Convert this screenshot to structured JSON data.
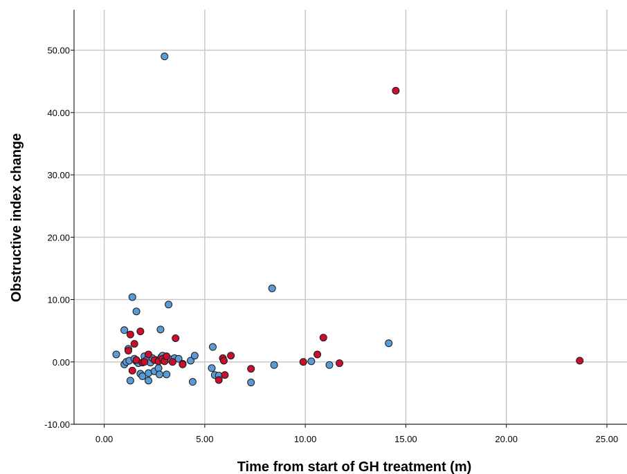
{
  "chart_data": {
    "type": "scatter",
    "title": "",
    "xlabel": "Time from start of GH treatment (m)",
    "ylabel": "Obstructive index change",
    "xlim": [
      -1.5,
      26.0
    ],
    "ylim": [
      -10.0,
      56.5
    ],
    "x_ticks": [
      0,
      5,
      10,
      15,
      20,
      25
    ],
    "x_tick_labels": [
      "0.00",
      "5.00",
      "10.00",
      "15.00",
      "20.00",
      "25.00"
    ],
    "y_ticks": [
      -10,
      0,
      10,
      20,
      30,
      40,
      50
    ],
    "y_tick_labels": [
      "-10.00",
      "0.00",
      "10.00",
      "20.00",
      "30.00",
      "40.00",
      "50.00"
    ],
    "grid": true,
    "series": [
      {
        "color": "#5b9bd5",
        "x": [
          0.6,
          1.0,
          1.0,
          1.1,
          1.2,
          1.25,
          1.3,
          1.4,
          1.5,
          1.6,
          1.6,
          1.7,
          1.8,
          1.9,
          2.0,
          2.1,
          2.2,
          2.2,
          2.3,
          2.4,
          2.5,
          2.6,
          2.7,
          2.75,
          2.8,
          2.85,
          2.9,
          3.0,
          3.05,
          3.1,
          3.2,
          3.3,
          3.5,
          3.7,
          3.9,
          4.3,
          4.4,
          4.5,
          5.35,
          5.4,
          5.5,
          5.7,
          7.3,
          8.35,
          8.45,
          10.3,
          11.2,
          14.15
        ],
        "y": [
          1.2,
          5.1,
          -0.4,
          0.0,
          2.1,
          0.2,
          -3.0,
          10.4,
          0.5,
          8.1,
          0.1,
          -0.2,
          -1.9,
          -2.3,
          0.9,
          0.3,
          -1.8,
          -3.0,
          -0.1,
          0.6,
          -1.5,
          0.3,
          -1.0,
          -2.0,
          5.2,
          0.8,
          1.0,
          49.0,
          0.3,
          -2.0,
          9.2,
          0.4,
          0.6,
          0.5,
          -0.3,
          0.2,
          -3.2,
          1.0,
          -1.0,
          2.4,
          -2.1,
          -2.2,
          -3.3,
          11.8,
          -0.5,
          0.1,
          -0.5,
          3.0
        ]
      },
      {
        "color": "#c8102e",
        "x": [
          1.2,
          1.3,
          1.4,
          1.5,
          1.6,
          1.8,
          1.9,
          2.0,
          2.2,
          2.5,
          2.7,
          2.9,
          3.0,
          3.1,
          3.4,
          3.55,
          3.9,
          5.9,
          5.95,
          6.0,
          6.3,
          5.7,
          7.3,
          9.9,
          10.6,
          10.9,
          11.7,
          14.5,
          23.65
        ],
        "y": [
          1.8,
          4.4,
          -1.4,
          2.9,
          0.3,
          4.9,
          -0.1,
          0.0,
          1.2,
          0.3,
          0.1,
          0.5,
          0.1,
          0.9,
          0.0,
          3.8,
          -0.4,
          0.6,
          0.2,
          -2.1,
          1.0,
          -2.9,
          -1.1,
          0.0,
          1.2,
          3.9,
          -0.2,
          43.5,
          0.2
        ]
      }
    ]
  }
}
